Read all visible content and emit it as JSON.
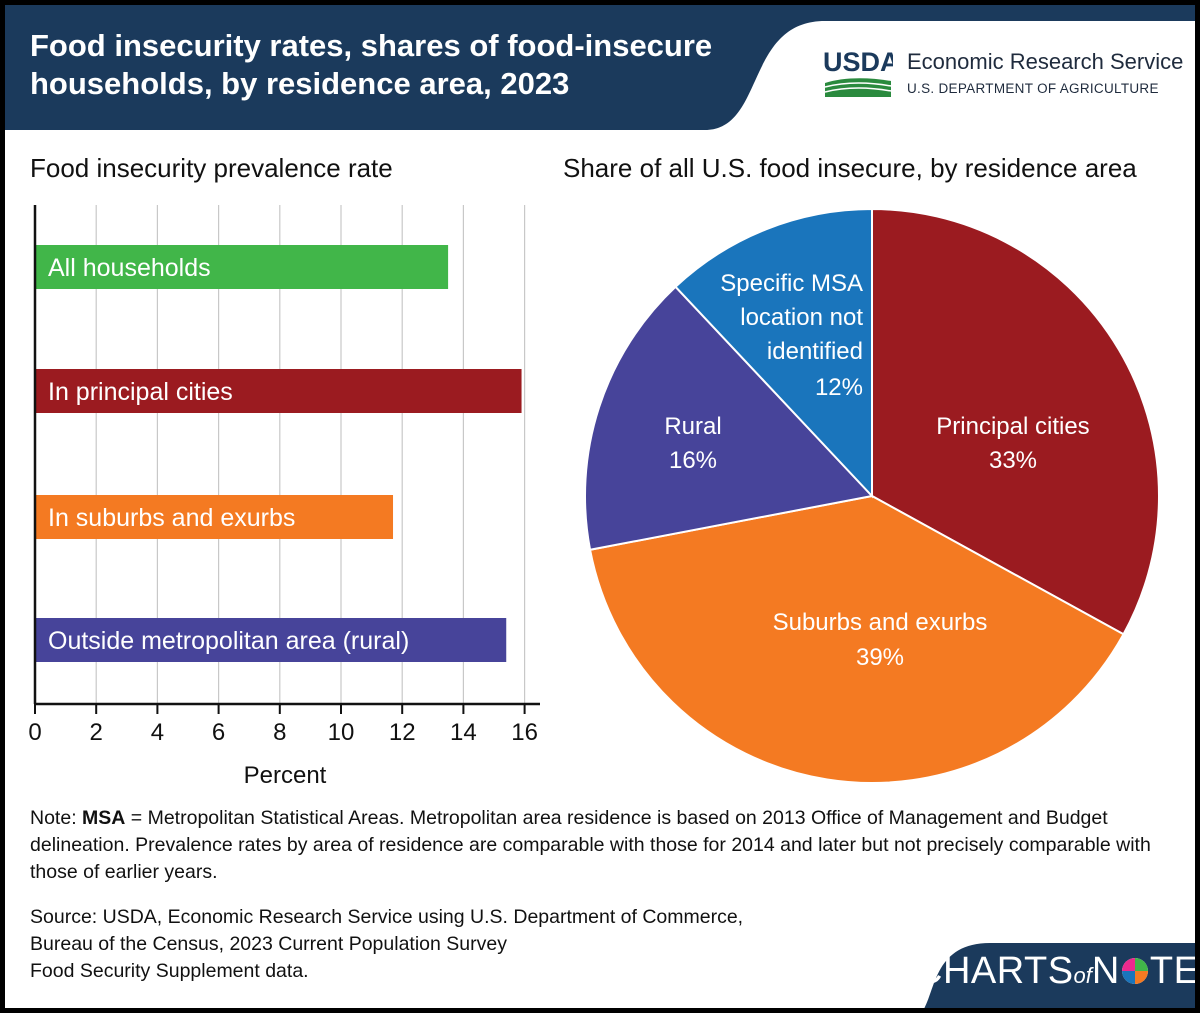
{
  "header": {
    "title_line1": "Food insecurity rates, shares of food-insecure",
    "title_line2": "households, by residence area, 2023",
    "agency": "Economic Research Service",
    "department": "U.S. DEPARTMENT OF AGRICULTURE",
    "logo_text": "USDA"
  },
  "colors": {
    "header_bg": "#1b3a5c",
    "green": "#41b649",
    "dark_red": "#9b1b20",
    "orange": "#f47a22",
    "purple": "#47449a",
    "blue": "#1a75bc"
  },
  "chart_data": [
    {
      "type": "bar",
      "orientation": "horizontal",
      "title": "Food insecurity prevalence rate",
      "xlabel": "Percent",
      "ylabel": "",
      "xlim": [
        0,
        16.5
      ],
      "xticks": [
        "0",
        "2",
        "4",
        "6",
        "8",
        "10",
        "12",
        "14",
        "16"
      ],
      "grid": true,
      "categories": [
        "All households",
        "In principal cities",
        "In suburbs and exurbs",
        "Outside metropolitan area (rural)"
      ],
      "values": [
        13.5,
        15.9,
        11.7,
        15.4
      ],
      "colors": [
        "#41b649",
        "#9b1b20",
        "#f47a22",
        "#47449a"
      ]
    },
    {
      "type": "pie",
      "title": "Share of all U.S. food insecure, by residence area",
      "slices": [
        {
          "label": "Principal cities",
          "value": 33,
          "value_label": "33%",
          "color": "#9b1b20"
        },
        {
          "label": "Suburbs and exurbs",
          "value": 39,
          "value_label": "39%",
          "color": "#f47a22"
        },
        {
          "label": "Rural",
          "value": 16,
          "value_label": "16%",
          "color": "#47449a"
        },
        {
          "label": "Specific MSA location not identified",
          "value": 12,
          "value_label": "12%",
          "color": "#1a75bc"
        }
      ]
    }
  ],
  "note": {
    "prefix": "Note: ",
    "bold_term": "MSA",
    "text": " = Metropolitan Statistical Areas. Metropolitan area residence is based on 2013 Office of Management and Budget delineation. Prevalence rates by area of residence are comparable with those for 2014 and later but not precisely comparable with those of earlier years."
  },
  "source": {
    "line1": "Source: USDA, Economic Research Service using U.S. Department of Commerce,",
    "line2": "Bureau of the Census, 2023 Current Population Survey",
    "line3": "Food Security Supplement data."
  },
  "brand": {
    "part1": "CHARTS",
    "part2": "of",
    "part3": "N",
    "part4": "TE"
  }
}
